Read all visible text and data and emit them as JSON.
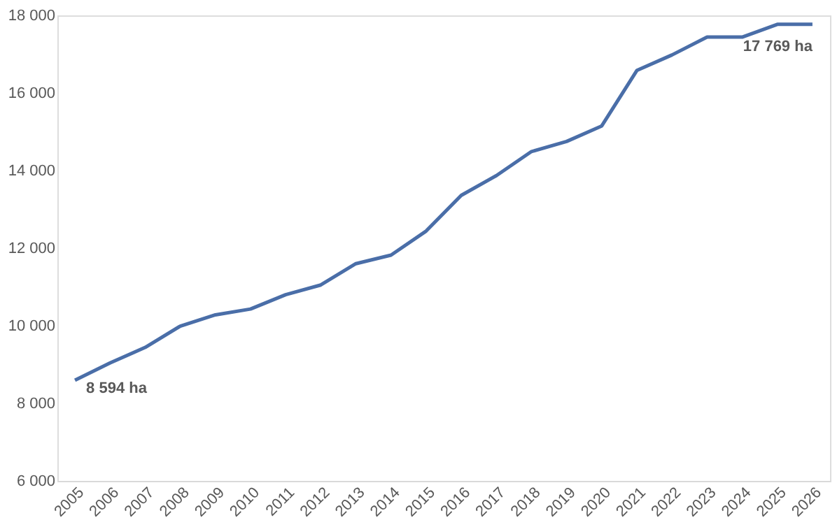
{
  "chart_data": {
    "type": "line",
    "categories": [
      "2005",
      "2006",
      "2007",
      "2008",
      "2009",
      "2010",
      "2011",
      "2012",
      "2013",
      "2014",
      "2015",
      "2016",
      "2017",
      "2018",
      "2019",
      "2020",
      "2021",
      "2022",
      "2023",
      "2024",
      "2025",
      "2026"
    ],
    "series": [
      {
        "color": "#4a6ea8",
        "values": [
          8594,
          9040,
          9440,
          9990,
          10280,
          10430,
          10800,
          11050,
          11600,
          11820,
          12440,
          13360,
          13870,
          14490,
          14750,
          15150,
          16580,
          16980,
          17440,
          17440,
          17769,
          17769
        ]
      }
    ],
    "ylim": [
      6000,
      18000
    ],
    "yticks": [
      {
        "value": 6000,
        "label": "6 000"
      },
      {
        "value": 8000,
        "label": "8 000"
      },
      {
        "value": 10000,
        "label": "10 000"
      },
      {
        "value": 12000,
        "label": "12 000"
      },
      {
        "value": 14000,
        "label": "14 000"
      },
      {
        "value": 16000,
        "label": "16 000"
      },
      {
        "value": 18000,
        "label": "18 000"
      }
    ],
    "annotations": [
      {
        "text": "8 594 ha",
        "x": "2005",
        "y": 8594
      },
      {
        "text": "17 769 ha",
        "x": "2026",
        "y": 17769
      }
    ],
    "grid": false,
    "marker": "none",
    "line_style": "solid"
  }
}
